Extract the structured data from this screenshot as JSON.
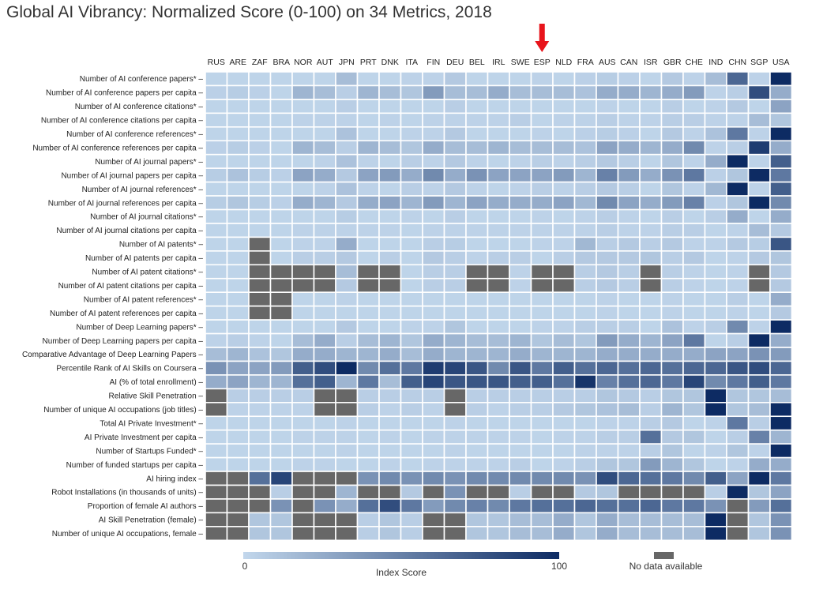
{
  "chart_data": {
    "type": "heatmap",
    "title": "Global AI Vibrancy: Normalized Score (0-100) on 34 Metrics, 2018",
    "x": [
      "RUS",
      "ARE",
      "ZAF",
      "BRA",
      "NOR",
      "AUT",
      "JPN",
      "PRT",
      "DNK",
      "ITA",
      "FIN",
      "DEU",
      "BEL",
      "IRL",
      "SWE",
      "ESP",
      "NLD",
      "FRA",
      "AUS",
      "CAN",
      "ISR",
      "GBR",
      "CHE",
      "IND",
      "CHN",
      "SGP",
      "USA"
    ],
    "highlight": {
      "column": "ESP",
      "marker": "red-down-arrow",
      "color": "#e8141b"
    },
    "y": [
      "Number of AI conference papers*",
      "Number of AI conference papers per capita",
      "Number of AI conference citations*",
      "Number of AI conference citations per capita",
      "Number of AI conference references*",
      "Number of AI conference references per capita",
      "Number of AI journal papers*",
      "Number of AI journal papers per capita",
      "Number of AI journal references*",
      "Number of AI journal references per capita",
      "Number of AI journal citations*",
      "Number of AI journal citations per capita",
      "Number of AI patents*",
      "Number of AI patents per capita",
      "Number of AI patent citations*",
      "Number of AI patent citations per capita",
      "Number of AI patent references*",
      "Number of AI patent references per capita",
      "Number of Deep Learning papers*",
      "Number of Deep Learning papers per capita",
      "Comparative Advantage of Deep Learning Papers",
      "Percentile Rank of AI Skills on Coursera",
      "AI (% of total enrollment)",
      "Relative Skill Penetration",
      "Number of unique AI occupations (job titles)",
      "Total AI Private Investment*",
      "AI Private Investment per capita",
      "Number of Startups Funded*",
      "Number of funded startups per capita",
      "AI hiring index",
      "Robot Installations (in thousands of units)",
      "Proportion of female AI authors",
      "AI Skill Penetration (female)",
      "Number of unique AI occupations, female"
    ],
    "values": [
      [
        2,
        2,
        2,
        2,
        2,
        2,
        15,
        2,
        2,
        3,
        3,
        8,
        2,
        2,
        2,
        3,
        2,
        4,
        6,
        4,
        2,
        8,
        3,
        15,
        65,
        3,
        100
      ],
      [
        4,
        6,
        4,
        2,
        20,
        15,
        5,
        20,
        15,
        10,
        35,
        15,
        15,
        25,
        15,
        15,
        15,
        12,
        25,
        25,
        20,
        25,
        35,
        3,
        5,
        80,
        25
      ],
      [
        2,
        2,
        2,
        2,
        2,
        2,
        5,
        2,
        2,
        2,
        2,
        5,
        2,
        2,
        2,
        2,
        2,
        2,
        3,
        2,
        2,
        5,
        2,
        3,
        8,
        2,
        30
      ],
      [
        2,
        2,
        2,
        2,
        3,
        3,
        3,
        2,
        3,
        2,
        3,
        3,
        3,
        3,
        5,
        2,
        3,
        3,
        5,
        3,
        3,
        5,
        5,
        3,
        3,
        15,
        10
      ],
      [
        2,
        2,
        2,
        2,
        2,
        2,
        12,
        2,
        2,
        3,
        3,
        8,
        2,
        2,
        2,
        3,
        2,
        4,
        6,
        4,
        2,
        8,
        3,
        12,
        55,
        3,
        100
      ],
      [
        4,
        6,
        4,
        2,
        20,
        15,
        5,
        20,
        15,
        10,
        25,
        15,
        15,
        20,
        15,
        15,
        15,
        12,
        30,
        25,
        20,
        25,
        45,
        3,
        5,
        90,
        25
      ],
      [
        2,
        2,
        2,
        2,
        2,
        3,
        12,
        3,
        2,
        5,
        3,
        8,
        3,
        2,
        3,
        5,
        3,
        5,
        8,
        5,
        2,
        10,
        3,
        25,
        100,
        3,
        70
      ],
      [
        6,
        12,
        6,
        4,
        30,
        25,
        8,
        30,
        35,
        25,
        45,
        25,
        40,
        30,
        30,
        30,
        35,
        20,
        50,
        35,
        25,
        40,
        55,
        4,
        10,
        100,
        55
      ],
      [
        2,
        2,
        2,
        2,
        2,
        3,
        12,
        3,
        2,
        5,
        3,
        8,
        3,
        2,
        3,
        5,
        3,
        5,
        8,
        5,
        2,
        10,
        3,
        18,
        100,
        3,
        70
      ],
      [
        6,
        10,
        6,
        4,
        25,
        20,
        8,
        25,
        30,
        20,
        35,
        20,
        30,
        25,
        25,
        25,
        30,
        18,
        45,
        30,
        25,
        35,
        50,
        4,
        10,
        100,
        45
      ],
      [
        2,
        2,
        2,
        2,
        2,
        2,
        6,
        2,
        2,
        3,
        2,
        5,
        2,
        2,
        2,
        3,
        2,
        3,
        5,
        3,
        2,
        5,
        2,
        5,
        25,
        2,
        25
      ],
      [
        2,
        2,
        2,
        2,
        3,
        3,
        3,
        3,
        3,
        2,
        3,
        3,
        3,
        3,
        3,
        3,
        3,
        3,
        5,
        3,
        3,
        5,
        5,
        2,
        3,
        15,
        8
      ],
      [
        2,
        2,
        null,
        2,
        3,
        3,
        25,
        2,
        2,
        2,
        5,
        6,
        2,
        2,
        2,
        3,
        3,
        18,
        5,
        8,
        5,
        8,
        3,
        3,
        8,
        6,
        75
      ],
      [
        2,
        2,
        null,
        2,
        5,
        5,
        8,
        2,
        5,
        2,
        8,
        5,
        3,
        5,
        5,
        2,
        5,
        8,
        8,
        8,
        10,
        5,
        8,
        2,
        3,
        8,
        10
      ],
      [
        2,
        2,
        null,
        null,
        null,
        null,
        15,
        null,
        null,
        2,
        5,
        5,
        null,
        null,
        3,
        null,
        null,
        5,
        8,
        5,
        null,
        5,
        3,
        2,
        3,
        null,
        8
      ],
      [
        2,
        2,
        null,
        null,
        null,
        null,
        8,
        null,
        null,
        2,
        5,
        5,
        null,
        null,
        3,
        null,
        null,
        5,
        8,
        5,
        null,
        5,
        3,
        2,
        3,
        null,
        8
      ],
      [
        2,
        2,
        null,
        null,
        2,
        2,
        3,
        2,
        2,
        2,
        2,
        2,
        2,
        2,
        2,
        2,
        2,
        2,
        3,
        2,
        2,
        3,
        2,
        2,
        5,
        2,
        25
      ],
      [
        2,
        2,
        null,
        null,
        2,
        2,
        2,
        2,
        2,
        2,
        2,
        2,
        2,
        2,
        2,
        2,
        2,
        2,
        3,
        2,
        2,
        3,
        2,
        2,
        3,
        2,
        8
      ],
      [
        2,
        2,
        2,
        2,
        2,
        2,
        8,
        2,
        2,
        3,
        3,
        10,
        2,
        2,
        2,
        3,
        3,
        5,
        5,
        5,
        2,
        12,
        3,
        5,
        45,
        3,
        100
      ],
      [
        3,
        5,
        3,
        2,
        15,
        25,
        5,
        15,
        20,
        10,
        25,
        20,
        15,
        15,
        20,
        10,
        15,
        10,
        35,
        25,
        20,
        30,
        55,
        2,
        5,
        100,
        25
      ],
      [
        15,
        20,
        12,
        10,
        25,
        25,
        20,
        20,
        25,
        15,
        25,
        20,
        20,
        20,
        25,
        20,
        20,
        20,
        25,
        25,
        25,
        25,
        25,
        30,
        30,
        40,
        35
      ],
      [
        40,
        30,
        30,
        35,
        70,
        80,
        100,
        45,
        60,
        55,
        90,
        85,
        75,
        45,
        75,
        55,
        70,
        60,
        65,
        60,
        65,
        60,
        65,
        65,
        75,
        80,
        65
      ],
      [
        25,
        30,
        20,
        20,
        60,
        70,
        20,
        55,
        15,
        70,
        85,
        75,
        75,
        75,
        70,
        70,
        60,
        95,
        50,
        60,
        65,
        55,
        85,
        45,
        55,
        70,
        55
      ],
      [
        null,
        5,
        5,
        5,
        5,
        null,
        null,
        5,
        5,
        5,
        5,
        null,
        5,
        5,
        5,
        5,
        5,
        5,
        10,
        8,
        5,
        10,
        10,
        100,
        10,
        10,
        15
      ],
      [
        null,
        3,
        3,
        3,
        3,
        null,
        null,
        5,
        3,
        5,
        3,
        null,
        5,
        3,
        5,
        5,
        8,
        10,
        12,
        15,
        5,
        20,
        10,
        100,
        10,
        15,
        100
      ],
      [
        2,
        2,
        2,
        2,
        2,
        2,
        3,
        2,
        2,
        2,
        2,
        3,
        2,
        2,
        2,
        2,
        2,
        2,
        3,
        3,
        5,
        8,
        2,
        3,
        55,
        5,
        100
      ],
      [
        2,
        2,
        2,
        2,
        3,
        3,
        3,
        2,
        3,
        2,
        3,
        3,
        3,
        3,
        3,
        2,
        3,
        3,
        5,
        5,
        60,
        8,
        10,
        2,
        5,
        50,
        20
      ],
      [
        2,
        2,
        2,
        2,
        2,
        2,
        3,
        2,
        2,
        2,
        2,
        3,
        2,
        2,
        2,
        2,
        2,
        3,
        3,
        3,
        5,
        10,
        2,
        3,
        10,
        3,
        100
      ],
      [
        2,
        2,
        2,
        2,
        3,
        3,
        2,
        2,
        3,
        2,
        3,
        3,
        3,
        3,
        5,
        2,
        3,
        5,
        10,
        10,
        35,
        20,
        10,
        2,
        3,
        25,
        25
      ],
      [
        null,
        null,
        60,
        85,
        null,
        null,
        null,
        40,
        45,
        40,
        45,
        40,
        45,
        45,
        45,
        45,
        45,
        40,
        80,
        65,
        60,
        55,
        45,
        70,
        30,
        100,
        55
      ],
      [
        null,
        null,
        null,
        5,
        null,
        null,
        20,
        null,
        null,
        8,
        null,
        40,
        null,
        null,
        5,
        null,
        null,
        8,
        10,
        null,
        null,
        null,
        null,
        5,
        100,
        10,
        30
      ],
      [
        null,
        null,
        null,
        40,
        null,
        40,
        25,
        60,
        80,
        55,
        35,
        45,
        50,
        45,
        55,
        60,
        60,
        65,
        60,
        60,
        65,
        55,
        55,
        40,
        null,
        35,
        60
      ],
      [
        null,
        null,
        10,
        10,
        null,
        null,
        null,
        5,
        10,
        5,
        null,
        null,
        10,
        10,
        15,
        15,
        25,
        10,
        25,
        15,
        15,
        15,
        15,
        100,
        null,
        10,
        40
      ],
      [
        null,
        null,
        10,
        10,
        null,
        null,
        null,
        5,
        10,
        5,
        null,
        null,
        10,
        10,
        15,
        15,
        25,
        10,
        25,
        15,
        15,
        15,
        15,
        100,
        null,
        10,
        40
      ]
    ],
    "range": [
      0,
      100
    ],
    "colors": {
      "low": "#c2d7ec",
      "high": "#0d2b63",
      "no_data": "#676767",
      "grid": "#ffffff"
    },
    "legend": {
      "scale_min_label": "0",
      "scale_max_label": "100",
      "scale_title": "Index Score",
      "no_data_label": "No data available",
      "placement": "bottom"
    }
  }
}
